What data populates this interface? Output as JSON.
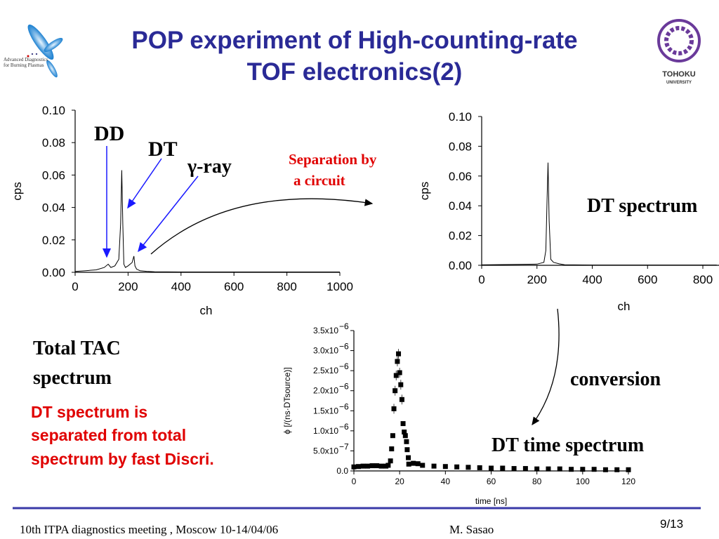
{
  "slide": {
    "title_line1": "POP experiment of High-counting-rate",
    "title_line2": "TOF electronics(2)",
    "left_logo_text1": "Advanced Diagnostics",
    "left_logo_text2": "for Burning Plasmas",
    "right_logo_text1": "TOHOKU",
    "right_logo_text2": "UNIVERSITY",
    "colors": {
      "title": "#2a2a96",
      "red_text": "#e00000",
      "arrow_blue": "#1a1aff",
      "footer_rule": "#3a3aa8",
      "logo_purple": "#6a3a9a"
    }
  },
  "annotations": {
    "dd": "DD",
    "dt": "DT",
    "gamma": "γ-ray",
    "separation1": "Separation by",
    "separation2": "a circuit",
    "dt_spectrum": "DT spectrum",
    "total1": "Total TAC",
    "total2": "spectrum",
    "note1": "DT spectrum is",
    "note2": "separated from total",
    "note3": "spectrum by fast Discri.",
    "conversion": "conversion",
    "dt_time": "DT time spectrum"
  },
  "footer": {
    "meeting": "10th  ITPA diagnostics meeting , Moscow 10-14/04/06",
    "author": "M. Sasao",
    "page": "9/13"
  },
  "chart_data": [
    {
      "type": "line",
      "title": "Total TAC spectrum",
      "xlabel": "ch",
      "ylabel": "cps",
      "xlim": [
        0,
        1000
      ],
      "ylim": [
        0,
        0.1
      ],
      "xticks": [
        "0",
        "200",
        "400",
        "600",
        "800",
        "1000"
      ],
      "yticks": [
        "0.00",
        "0.02",
        "0.04",
        "0.06",
        "0.08",
        "0.10"
      ],
      "x": [
        0,
        40,
        80,
        110,
        125,
        135,
        150,
        165,
        172,
        176,
        180,
        184,
        190,
        200,
        215,
        222,
        226,
        232,
        245,
        270,
        300,
        400,
        600,
        800,
        1000
      ],
      "values": [
        0.0005,
        0.001,
        0.0015,
        0.003,
        0.005,
        0.003,
        0.004,
        0.008,
        0.03,
        0.063,
        0.03,
        0.005,
        0.003,
        0.004,
        0.006,
        0.01,
        0.004,
        0.002,
        0.001,
        0.0006,
        0.0003,
        0.0002,
        0.0002,
        0.0002,
        0.0002
      ]
    },
    {
      "type": "line",
      "title": "DT spectrum",
      "xlabel": "ch",
      "ylabel": "cps",
      "xlim": [
        0,
        800
      ],
      "ylim": [
        0,
        0.1
      ],
      "xticks": [
        "0",
        "200",
        "400",
        "600",
        "800"
      ],
      "yticks": [
        "0.00",
        "0.02",
        "0.04",
        "0.06",
        "0.08",
        "0.10"
      ],
      "x": [
        0,
        100,
        200,
        225,
        232,
        236,
        240,
        244,
        250,
        260,
        280,
        300,
        400,
        600,
        800,
        850
      ],
      "values": [
        0.0003,
        0.0005,
        0.0008,
        0.002,
        0.01,
        0.04,
        0.069,
        0.03,
        0.004,
        0.002,
        0.001,
        0.0004,
        0.0002,
        0.0002,
        0.0002,
        0.0002
      ]
    },
    {
      "type": "scatter",
      "title": "DT time spectrum",
      "xlabel": "time [ns]",
      "ylabel": "ϕ [/(ns·DTsource)]",
      "xlim": [
        0,
        120
      ],
      "ylim": [
        0,
        3.5e-06
      ],
      "xticks": [
        "0",
        "20",
        "40",
        "60",
        "80",
        "100",
        "120"
      ],
      "yticks": [
        {
          "m": "0.0",
          "e": ""
        },
        {
          "m": "5.0x10",
          "e": "−7"
        },
        {
          "m": "1.0x10",
          "e": "−6"
        },
        {
          "m": "1.5x10",
          "e": "−6"
        },
        {
          "m": "2.0x10",
          "e": "−6"
        },
        {
          "m": "2.5x10",
          "e": "−6"
        },
        {
          "m": "3.0x10",
          "e": "−6"
        },
        {
          "m": "3.5x10",
          "e": "−6"
        }
      ],
      "x": [
        0,
        2,
        4,
        6,
        8,
        10,
        12,
        14,
        15,
        16,
        16.5,
        17,
        17.5,
        18,
        18.5,
        19,
        19.5,
        20,
        20.5,
        21,
        21.5,
        22,
        22.5,
        23,
        23.3,
        23.8,
        24,
        26,
        28,
        30,
        35,
        40,
        45,
        50,
        55,
        60,
        65,
        70,
        75,
        80,
        85,
        90,
        95,
        100,
        105,
        110,
        115,
        120
      ],
      "values": [
        1e-07,
        1.1e-07,
        1.2e-07,
        1.2e-07,
        1.3e-07,
        1.3e-07,
        1.2e-07,
        1.2e-07,
        1.4e-07,
        2.5e-07,
        5.5e-07,
        8.8e-07,
        1.55e-06,
        2e-06,
        2.38e-06,
        2.73e-06,
        2.92e-06,
        2.45e-06,
        2.15e-06,
        1.78e-06,
        1.18e-06,
        9.7e-07,
        8.8e-07,
        7.3e-07,
        5.3e-07,
        3.3e-07,
        1.7e-07,
        1.9e-07,
        1.8e-07,
        1.4e-07,
        1.2e-07,
        1.1e-07,
        1e-07,
        9e-08,
        8e-08,
        7e-08,
        7e-08,
        6e-08,
        6e-08,
        5e-08,
        5e-08,
        5e-08,
        4e-08,
        4e-08,
        4e-08,
        3e-08,
        3e-08,
        3e-08
      ]
    }
  ]
}
